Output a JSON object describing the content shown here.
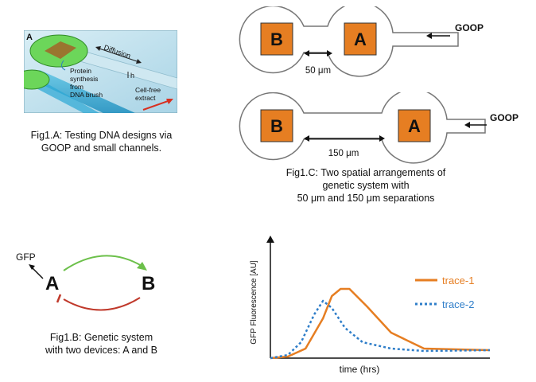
{
  "fig_a": {
    "panel_letter": "A",
    "diffusion_label": "Diffusion",
    "protein_label_1": "Protein",
    "protein_label_2": "synthesis",
    "protein_label_3": "from",
    "protein_label_4": "DNA brush",
    "h_label": "h",
    "extract_label_1": "Cell-free",
    "extract_label_2": "extract",
    "caption_line1": "Fig1.A: Testing DNA designs via",
    "caption_line2": "GOOP and small channels."
  },
  "fig_b": {
    "gfp_label": "GFP",
    "node_a": "A",
    "node_b": "B",
    "caption_line1": "Fig1.B: Genetic system",
    "caption_line2": "with two devices: A and B",
    "activation_color": "#6cc04a",
    "repression_color": "#c0392b"
  },
  "fig_c": {
    "top": {
      "left": "B",
      "right": "A",
      "goop": "GOOP",
      "distance": "50 μm"
    },
    "bottom": {
      "left": "B",
      "right": "A",
      "goop": "GOOP",
      "distance": "150 μm"
    },
    "box_color": "#e67e22",
    "caption_line1": "Fig1.C: Two spatial arrangements of",
    "caption_line2": "genetic system with",
    "caption_line3": "50 μm and 150 μm separations"
  },
  "chart_data": {
    "type": "line",
    "xlabel": "time (hrs)",
    "ylabel": "GFP Fluorescence [AU]",
    "xlim": [
      0,
      100
    ],
    "ylim": [
      0,
      100
    ],
    "grid": false,
    "legend_position": "top-right",
    "series": [
      {
        "name": "trace-1",
        "color": "#e67e22",
        "style": "solid",
        "x": [
          0,
          8,
          16,
          24,
          28,
          32,
          36,
          44,
          55,
          70,
          100
        ],
        "y": [
          0,
          2,
          12,
          50,
          78,
          87,
          87,
          65,
          32,
          12,
          10
        ]
      },
      {
        "name": "trace-2",
        "color": "#2f7ec9",
        "style": "dotted",
        "x": [
          0,
          8,
          14,
          20,
          24,
          28,
          34,
          42,
          55,
          70,
          100
        ],
        "y": [
          0,
          4,
          20,
          55,
          72,
          63,
          38,
          20,
          12,
          9,
          10
        ]
      }
    ]
  }
}
